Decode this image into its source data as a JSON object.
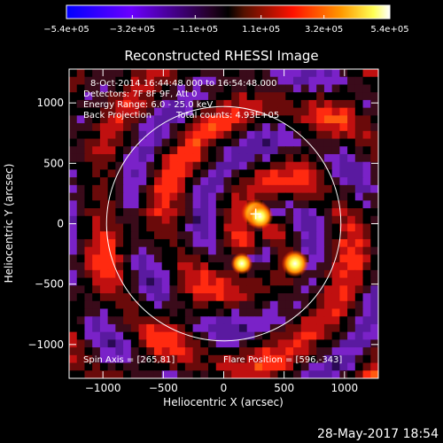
{
  "chart_data": {
    "type": "heatmap",
    "title": "Reconstructed RHESSI Image",
    "xlabel": "Heliocentric X (arcsec)",
    "ylabel": "Heliocentric Y (arcsec)",
    "xlim": [
      -1280,
      1280
    ],
    "ylim": [
      -1280,
      1280
    ],
    "x_ticks": [
      -1000,
      -500,
      0,
      500,
      1000
    ],
    "x_tick_labels": [
      "−1000",
      "−500",
      "0",
      "500",
      "1000"
    ],
    "y_ticks": [
      -1000,
      -500,
      0,
      500,
      1000
    ],
    "y_tick_labels": [
      "−1000",
      "−500",
      "0",
      "500",
      "1000"
    ],
    "colorbar": {
      "range": [
        -540000,
        540000
      ],
      "tick_values": [
        -540000,
        -320000,
        -110000,
        110000,
        320000,
        540000
      ],
      "tick_labels": [
        "−5.4e+05",
        "−3.2e+05",
        "−1.1e+05",
        "1.1e+05",
        "3.2e+05",
        "5.4e+05"
      ],
      "colors": [
        "#0000ff",
        "#7a00ff",
        "#000000",
        "#ff0000",
        "#ff8800",
        "#ffff00",
        "#ffffff"
      ]
    },
    "info_lines": [
      "8-Oct-2014 16:44:48.000 to 16:54:48.000",
      "Detectors: 7F 8F 9F, Att 0",
      "Energy Range: 6.0 - 25.0 keV",
      "Back Projection"
    ],
    "total_counts": "Total counts: 4.93E+05",
    "spin_axis": "Spin Axis = [265,81]",
    "flare_position": "Flare Position = [596,-343]",
    "limb_radius": 970,
    "sources": [
      {
        "x": 260,
        "y": 90,
        "peak": 540000
      },
      {
        "x": 300,
        "y": 60,
        "peak": 480000
      },
      {
        "x": 590,
        "y": -330,
        "peak": 500000
      },
      {
        "x": 150,
        "y": -330,
        "peak": 300000
      }
    ],
    "marker": {
      "x": 265,
      "y": 81,
      "symbol": "+"
    }
  },
  "footer": {
    "timestamp": "28-May-2017 18:54"
  }
}
